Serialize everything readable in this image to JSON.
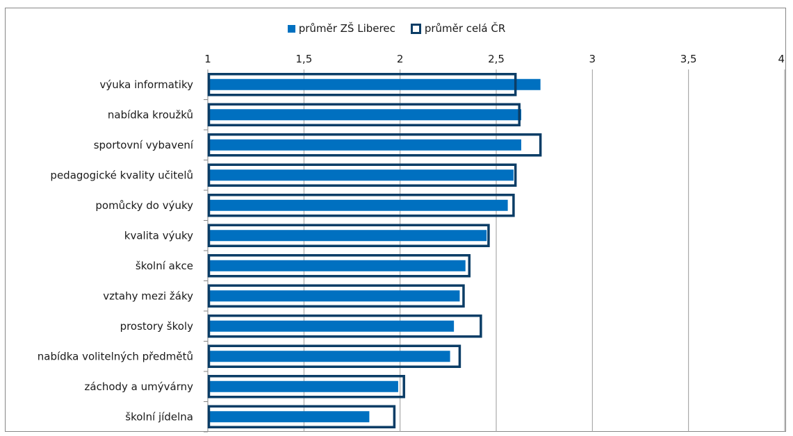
{
  "chart_data": {
    "type": "bar",
    "orientation": "horizontal",
    "categories": [
      "výuka informatiky",
      "nabídka kroužků",
      "sportovní vybavení",
      "pedagogické kvality učitelů",
      "pomůcky do výuky",
      "kvalita výuky",
      "školní akce",
      "vztahy mezi žáky",
      "prostory školy",
      "nabídka volitelných předmětů",
      "záchody a umývárny",
      "školní jídelna"
    ],
    "series": [
      {
        "name": "průměr ZŠ Liberec",
        "style": "filled",
        "color": "#0070c0",
        "values": [
          2.73,
          2.63,
          2.63,
          2.59,
          2.56,
          2.45,
          2.34,
          2.31,
          2.28,
          2.26,
          1.99,
          1.84
        ]
      },
      {
        "name": "průměr celá ČR",
        "style": "outline",
        "color": "#0b3d66",
        "values": [
          2.6,
          2.62,
          2.73,
          2.6,
          2.59,
          2.46,
          2.36,
          2.33,
          2.42,
          2.31,
          2.02,
          1.97
        ]
      }
    ],
    "xlim": [
      1,
      4
    ],
    "ticks": [
      "1",
      "1,5",
      "2",
      "2,5",
      "3",
      "3,5",
      "4"
    ],
    "tick_values": [
      1,
      1.5,
      2,
      2.5,
      3,
      3.5,
      4
    ],
    "grid": true,
    "legend": "top-center"
  }
}
